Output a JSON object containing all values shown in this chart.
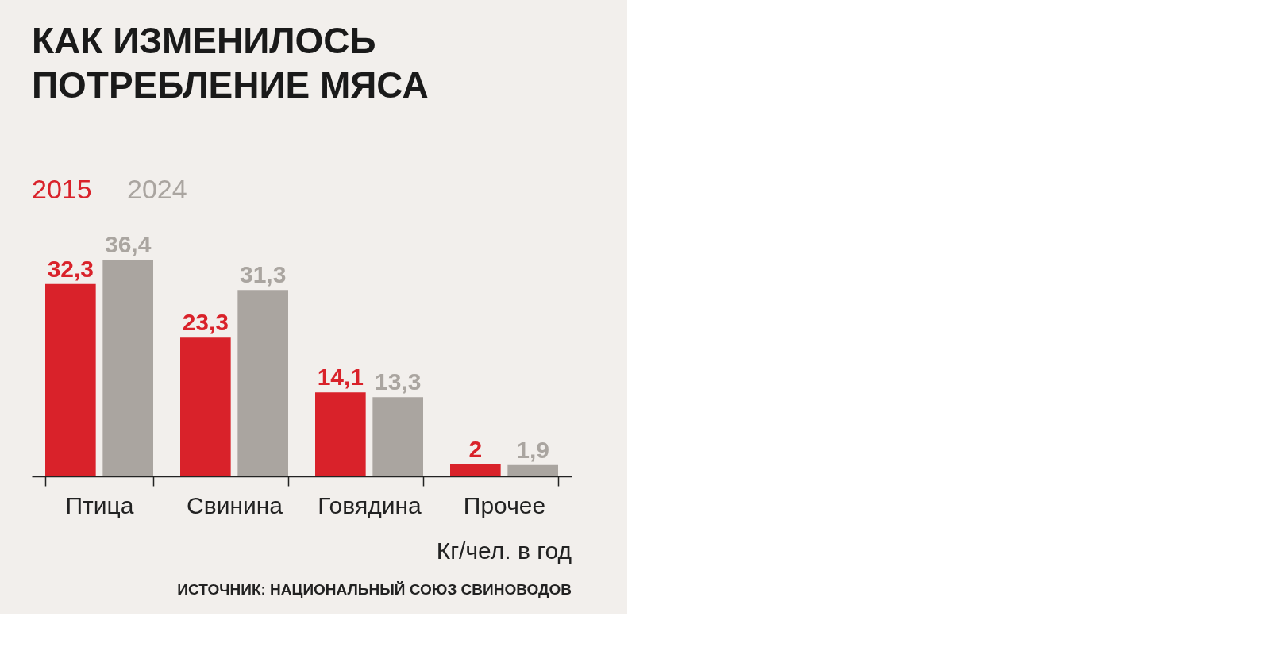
{
  "chart_data": {
    "type": "bar",
    "title": [
      "КАК ИЗМЕНИЛОСЬ",
      "ПОТРЕБЛЕНИЕ МЯСА"
    ],
    "categories": [
      "Птица",
      "Свинина",
      "Говядина",
      "Прочее"
    ],
    "series": [
      {
        "name": "2015",
        "color": "#d9222a",
        "values": [
          32.3,
          23.3,
          14.1,
          2
        ],
        "value_labels": [
          "32,3",
          "23,3",
          "14,1",
          "2"
        ]
      },
      {
        "name": "2024",
        "color": "#aaa5a0",
        "values": [
          36.4,
          31.3,
          13.3,
          1.9
        ],
        "value_labels": [
          "36,4",
          "31,3",
          "13,3",
          "1,9"
        ]
      }
    ],
    "annotations": [
      "Кг/чел. в год",
      "ИСТОЧНИК: НАЦИОНАЛЬНЫЙ СОЮЗ СВИНОВОДОВ"
    ],
    "legend": "top left",
    "grid": false
  }
}
